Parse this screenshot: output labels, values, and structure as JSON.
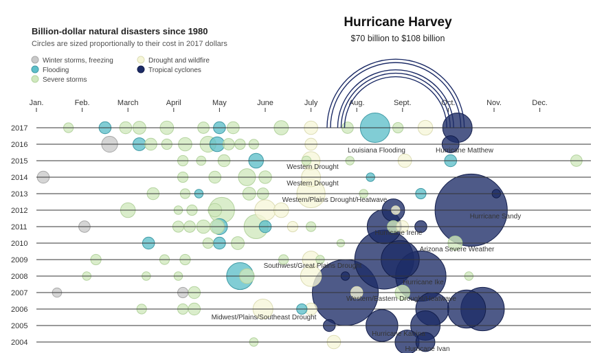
{
  "chart_data": {
    "type": "bubble-timeline",
    "title": "Billion-dollar natural disasters since 1980",
    "subtitle": "Circles are sized proportionally to their cost in 2017 dollars",
    "legend": [
      {
        "key": "winter",
        "label": "Winter storms, freezing",
        "color": "#c9c9c9"
      },
      {
        "key": "flood",
        "label": "Flooding",
        "color": "#5ebfc9"
      },
      {
        "key": "severe",
        "label": "Severe storms",
        "color": "#cfe8bd"
      },
      {
        "key": "drought",
        "label": "Drought and wildfire",
        "color": "#f6f6d8"
      },
      {
        "key": "cyclone",
        "label": "Tropical cyclones",
        "color": "#1c2b66"
      }
    ],
    "months": [
      "Jan.",
      "Feb.",
      "March",
      "April",
      "May",
      "June",
      "July",
      "Aug.",
      "Sept.",
      "Oct.",
      "Nov.",
      "Dec."
    ],
    "years": [
      2017,
      2016,
      2015,
      2014,
      2013,
      2012,
      2011,
      2010,
      2009,
      2008,
      2007,
      2006,
      2005,
      2004
    ],
    "highlight": {
      "title": "Hurricane Harvey",
      "range": "$70 billion to $108 billion",
      "year": 2017,
      "month": 8.85,
      "cost_low_billion": 70,
      "cost_high_billion": 108
    },
    "annotations": [
      {
        "text": "Louisiana Flooding",
        "year": 2016
      },
      {
        "text": "Hurricane Matthew",
        "year": 2016
      },
      {
        "text": "Western Drought",
        "year": 2015
      },
      {
        "text": "Western Drought",
        "year": 2014
      },
      {
        "text": "Western/Plains Drought/Heatwave",
        "year": 2013
      },
      {
        "text": "Hurricane Sandy",
        "year": 2012
      },
      {
        "text": "Hurricane Irene",
        "year": 2011
      },
      {
        "text": "Arizona Severe Weather",
        "year": 2010
      },
      {
        "text": "Southwest/Great Plains Drought",
        "year": 2009
      },
      {
        "text": "Hurricane Ike",
        "year": 2008
      },
      {
        "text": "Western/Eastern Drought/Heatwave",
        "year": 2007
      },
      {
        "text": "Midwest/Plains/Southeast Drought",
        "year": 2006
      },
      {
        "text": "Hurricane Katrina",
        "year": 2005
      },
      {
        "text": "Hurricane Ivan",
        "year": 2004
      }
    ],
    "events": [
      {
        "year": 2017,
        "month": 1.7,
        "cost": 1.3,
        "type": "severe"
      },
      {
        "year": 2017,
        "month": 2.5,
        "cost": 2.0,
        "type": "flood"
      },
      {
        "year": 2017,
        "month": 2.95,
        "cost": 2.0,
        "type": "severe"
      },
      {
        "year": 2017,
        "month": 3.25,
        "cost": 2.3,
        "type": "severe"
      },
      {
        "year": 2017,
        "month": 3.85,
        "cost": 2.5,
        "type": "severe"
      },
      {
        "year": 2017,
        "month": 4.65,
        "cost": 1.8,
        "type": "severe"
      },
      {
        "year": 2017,
        "month": 5.0,
        "cost": 2.0,
        "type": "flood"
      },
      {
        "year": 2017,
        "month": 5.3,
        "cost": 2.0,
        "type": "severe"
      },
      {
        "year": 2017,
        "month": 6.35,
        "cost": 2.8,
        "type": "severe"
      },
      {
        "year": 2017,
        "month": 7.0,
        "cost": 2.5,
        "type": "drought"
      },
      {
        "year": 2017,
        "month": 7.8,
        "cost": 1.8,
        "type": "severe"
      },
      {
        "year": 2017,
        "month": 8.4,
        "cost": 12.0,
        "type": "flood"
      },
      {
        "year": 2017,
        "month": 8.9,
        "cost": 1.5,
        "type": "severe"
      },
      {
        "year": 2017,
        "month": 9.5,
        "cost": 3.0,
        "type": "drought"
      },
      {
        "year": 2017,
        "month": 10.2,
        "cost": 12.0,
        "type": "cyclone"
      },
      {
        "year": 2016,
        "month": 2.6,
        "cost": 3.5,
        "type": "winter"
      },
      {
        "year": 2016,
        "month": 3.25,
        "cost": 2.3,
        "type": "flood"
      },
      {
        "year": 2016,
        "month": 3.5,
        "cost": 2.0,
        "type": "severe"
      },
      {
        "year": 2016,
        "month": 3.85,
        "cost": 1.5,
        "type": "severe"
      },
      {
        "year": 2016,
        "month": 4.25,
        "cost": 2.5,
        "type": "severe"
      },
      {
        "year": 2016,
        "month": 4.75,
        "cost": 3.5,
        "type": "severe"
      },
      {
        "year": 2016,
        "month": 4.95,
        "cost": 3.0,
        "type": "flood"
      },
      {
        "year": 2016,
        "month": 5.2,
        "cost": 1.8,
        "type": "severe"
      },
      {
        "year": 2016,
        "month": 5.45,
        "cost": 1.5,
        "type": "severe"
      },
      {
        "year": 2016,
        "month": 5.75,
        "cost": 1.3,
        "type": "severe"
      },
      {
        "year": 2016,
        "month": 7.0,
        "cost": 2.0,
        "type": "drought"
      },
      {
        "year": 2016,
        "month": 10.05,
        "cost": 4.0,
        "type": "cyclone"
      },
      {
        "year": 2015,
        "month": 4.2,
        "cost": 1.5,
        "type": "severe"
      },
      {
        "year": 2015,
        "month": 4.6,
        "cost": 1.2,
        "type": "severe"
      },
      {
        "year": 2015,
        "month": 5.1,
        "cost": 2.0,
        "type": "severe"
      },
      {
        "year": 2015,
        "month": 5.8,
        "cost": 3.0,
        "type": "flood"
      },
      {
        "year": 2015,
        "month": 6.9,
        "cost": 1.2,
        "type": "severe"
      },
      {
        "year": 2015,
        "month": 7.0,
        "cost": 4.5,
        "type": "drought"
      },
      {
        "year": 2015,
        "month": 7.85,
        "cost": 1.0,
        "type": "severe"
      },
      {
        "year": 2015,
        "month": 9.05,
        "cost": 2.5,
        "type": "drought"
      },
      {
        "year": 2015,
        "month": 10.05,
        "cost": 2.0,
        "type": "flood"
      },
      {
        "year": 2015,
        "month": 12.8,
        "cost": 1.8,
        "type": "severe"
      },
      {
        "year": 2014,
        "month": 1.15,
        "cost": 2.0,
        "type": "winter"
      },
      {
        "year": 2014,
        "month": 4.2,
        "cost": 1.5,
        "type": "severe"
      },
      {
        "year": 2014,
        "month": 4.9,
        "cost": 2.0,
        "type": "severe"
      },
      {
        "year": 2014,
        "month": 5.6,
        "cost": 4.0,
        "type": "severe"
      },
      {
        "year": 2014,
        "month": 6.0,
        "cost": 2.2,
        "type": "severe"
      },
      {
        "year": 2014,
        "month": 7.0,
        "cost": 5.0,
        "type": "drought"
      },
      {
        "year": 2014,
        "month": 8.3,
        "cost": 1.0,
        "type": "flood"
      },
      {
        "year": 2013,
        "month": 3.55,
        "cost": 2.0,
        "type": "severe"
      },
      {
        "year": 2013,
        "month": 4.25,
        "cost": 1.3,
        "type": "severe"
      },
      {
        "year": 2013,
        "month": 4.55,
        "cost": 1.0,
        "type": "flood"
      },
      {
        "year": 2013,
        "month": 5.65,
        "cost": 2.3,
        "type": "severe"
      },
      {
        "year": 2013,
        "month": 5.95,
        "cost": 1.8,
        "type": "severe"
      },
      {
        "year": 2013,
        "month": 7.0,
        "cost": 11.0,
        "type": "drought"
      },
      {
        "year": 2013,
        "month": 8.15,
        "cost": 1.0,
        "type": "severe"
      },
      {
        "year": 2013,
        "month": 9.4,
        "cost": 1.5,
        "type": "flood"
      },
      {
        "year": 2013,
        "month": 11.05,
        "cost": 1.0,
        "type": "cyclone"
      },
      {
        "year": 2012,
        "month": 3.0,
        "cost": 3.0,
        "type": "severe"
      },
      {
        "year": 2012,
        "month": 4.1,
        "cost": 1.0,
        "type": "severe"
      },
      {
        "year": 2012,
        "month": 4.4,
        "cost": 1.5,
        "type": "severe"
      },
      {
        "year": 2012,
        "month": 4.9,
        "cost": 2.5,
        "type": "severe"
      },
      {
        "year": 2012,
        "month": 5.05,
        "cost": 9.0,
        "type": "severe"
      },
      {
        "year": 2012,
        "month": 6.0,
        "cost": 6.0,
        "type": "drought"
      },
      {
        "year": 2012,
        "month": 6.35,
        "cost": 3.0,
        "type": "drought"
      },
      {
        "year": 2012,
        "month": 8.8,
        "cost": 7.0,
        "type": "cyclone"
      },
      {
        "year": 2012,
        "month": 8.85,
        "cost": 1.0,
        "type": "drought"
      },
      {
        "year": 2012,
        "month": 10.5,
        "cost": 72.0,
        "type": "cyclone"
      },
      {
        "year": 2011,
        "month": 2.05,
        "cost": 1.8,
        "type": "winter"
      },
      {
        "year": 2011,
        "month": 4.1,
        "cost": 1.7,
        "type": "severe"
      },
      {
        "year": 2011,
        "month": 4.35,
        "cost": 1.8,
        "type": "severe"
      },
      {
        "year": 2011,
        "month": 4.65,
        "cost": 2.5,
        "type": "severe"
      },
      {
        "year": 2011,
        "month": 4.95,
        "cost": 2.8,
        "type": "severe"
      },
      {
        "year": 2011,
        "month": 5.0,
        "cost": 3.5,
        "type": "flood"
      },
      {
        "year": 2011,
        "month": 5.8,
        "cost": 8.0,
        "type": "severe"
      },
      {
        "year": 2011,
        "month": 6.0,
        "cost": 2.0,
        "type": "flood"
      },
      {
        "year": 2011,
        "month": 6.6,
        "cost": 1.5,
        "type": "drought"
      },
      {
        "year": 2011,
        "month": 7.0,
        "cost": 1.3,
        "type": "severe"
      },
      {
        "year": 2011,
        "month": 8.6,
        "cost": 16.0,
        "type": "cyclone"
      },
      {
        "year": 2011,
        "month": 8.8,
        "cost": 2.0,
        "type": "severe"
      },
      {
        "year": 2011,
        "month": 9.0,
        "cost": 2.0,
        "type": "drought"
      },
      {
        "year": 2011,
        "month": 9.4,
        "cost": 2.0,
        "type": "cyclone"
      },
      {
        "year": 2010,
        "month": 3.45,
        "cost": 2.0,
        "type": "flood"
      },
      {
        "year": 2010,
        "month": 4.75,
        "cost": 1.5,
        "type": "severe"
      },
      {
        "year": 2010,
        "month": 5.0,
        "cost": 2.0,
        "type": "flood"
      },
      {
        "year": 2010,
        "month": 5.4,
        "cost": 2.3,
        "type": "severe"
      },
      {
        "year": 2010,
        "month": 7.65,
        "cost": 0.8,
        "type": "severe"
      },
      {
        "year": 2010,
        "month": 10.15,
        "cost": 2.8,
        "type": "severe"
      },
      {
        "year": 2009,
        "month": 2.3,
        "cost": 1.5,
        "type": "severe"
      },
      {
        "year": 2009,
        "month": 3.8,
        "cost": 1.3,
        "type": "severe"
      },
      {
        "year": 2009,
        "month": 4.25,
        "cost": 1.5,
        "type": "severe"
      },
      {
        "year": 2009,
        "month": 6.4,
        "cost": 1.3,
        "type": "severe"
      },
      {
        "year": 2009,
        "month": 7.0,
        "cost": 4.0,
        "type": "drought"
      },
      {
        "year": 2009,
        "month": 7.2,
        "cost": 1.0,
        "type": "severe"
      },
      {
        "year": 2009,
        "month": 8.6,
        "cost": 48.0,
        "type": "cyclone"
      },
      {
        "year": 2009,
        "month": 8.95,
        "cost": 20.0,
        "type": "cyclone"
      },
      {
        "year": 2008,
        "month": 2.1,
        "cost": 1.0,
        "type": "severe"
      },
      {
        "year": 2008,
        "month": 3.4,
        "cost": 1.0,
        "type": "severe"
      },
      {
        "year": 2008,
        "month": 4.1,
        "cost": 1.0,
        "type": "severe"
      },
      {
        "year": 2008,
        "month": 5.45,
        "cost": 10.0,
        "type": "flood"
      },
      {
        "year": 2008,
        "month": 5.6,
        "cost": 3.0,
        "type": "severe"
      },
      {
        "year": 2008,
        "month": 7.0,
        "cost": 6.0,
        "type": "drought"
      },
      {
        "year": 2008,
        "month": 7.75,
        "cost": 1.0,
        "type": "cyclone"
      },
      {
        "year": 2008,
        "month": 9.4,
        "cost": 35.0,
        "type": "cyclone"
      },
      {
        "year": 2008,
        "month": 10.45,
        "cost": 1.0,
        "type": "severe"
      },
      {
        "year": 2007,
        "month": 1.45,
        "cost": 1.2,
        "type": "winter"
      },
      {
        "year": 2007,
        "month": 4.2,
        "cost": 1.5,
        "type": "winter"
      },
      {
        "year": 2007,
        "month": 4.45,
        "cost": 2.0,
        "type": "severe"
      },
      {
        "year": 2007,
        "month": 7.75,
        "cost": 60.0,
        "type": "cyclone"
      },
      {
        "year": 2007,
        "month": 8.0,
        "cost": 2.0,
        "type": "drought"
      },
      {
        "year": 2007,
        "month": 9.0,
        "cost": 3.0,
        "type": "severe"
      },
      {
        "year": 2006,
        "month": 3.3,
        "cost": 1.3,
        "type": "severe"
      },
      {
        "year": 2006,
        "month": 4.2,
        "cost": 1.5,
        "type": "severe"
      },
      {
        "year": 2006,
        "month": 4.45,
        "cost": 2.0,
        "type": "severe"
      },
      {
        "year": 2006,
        "month": 5.95,
        "cost": 5.5,
        "type": "drought"
      },
      {
        "year": 2006,
        "month": 6.8,
        "cost": 1.5,
        "type": "flood"
      },
      {
        "year": 2006,
        "month": 7.0,
        "cost": 2.0,
        "type": "drought"
      },
      {
        "year": 2006,
        "month": 9.65,
        "cost": 15.0,
        "type": "cyclone"
      },
      {
        "year": 2006,
        "month": 10.4,
        "cost": 20.0,
        "type": "cyclone"
      },
      {
        "year": 2006,
        "month": 10.75,
        "cost": 26.0,
        "type": "cyclone"
      },
      {
        "year": 2005,
        "month": 7.4,
        "cost": 2.0,
        "type": "cyclone"
      },
      {
        "year": 2005,
        "month": 8.55,
        "cost": 14.0,
        "type": "cyclone"
      },
      {
        "year": 2005,
        "month": 9.5,
        "cost": 12.0,
        "type": "cyclone"
      },
      {
        "year": 2004,
        "month": 5.75,
        "cost": 1.0,
        "type": "severe"
      },
      {
        "year": 2004,
        "month": 7.5,
        "cost": 2.5,
        "type": "drought"
      },
      {
        "year": 2004,
        "month": 9.1,
        "cost": 8.0,
        "type": "cyclone"
      },
      {
        "year": 2004,
        "month": 9.5,
        "cost": 5.0,
        "type": "cyclone"
      }
    ]
  }
}
